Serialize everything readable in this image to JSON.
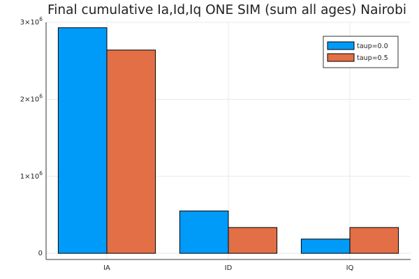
{
  "chart_data": {
    "type": "bar",
    "title": "Final cumulative Ia,Id,Iq ONE SIM (sum all ages) Nairobi",
    "xlabel": "",
    "ylabel": "",
    "categories": [
      "IA",
      "ID",
      "IQ"
    ],
    "series": [
      {
        "name": "taup=0.0",
        "color": "#009af9",
        "values": [
          2930000,
          550000,
          185000
        ]
      },
      {
        "name": "taup=0.5",
        "color": "#e26f46",
        "values": [
          2640000,
          335000,
          335000
        ]
      }
    ],
    "ylim": [
      -80000,
      3000000
    ],
    "yticks": [
      {
        "value": 0,
        "mantissa": "0",
        "exponent": ""
      },
      {
        "value": 1000000,
        "mantissa": "1×10",
        "exponent": "6"
      },
      {
        "value": 2000000,
        "mantissa": "2×10",
        "exponent": "6"
      },
      {
        "value": 3000000,
        "mantissa": "3×10",
        "exponent": "6"
      }
    ],
    "grid": true,
    "legend_position": "top-right"
  }
}
